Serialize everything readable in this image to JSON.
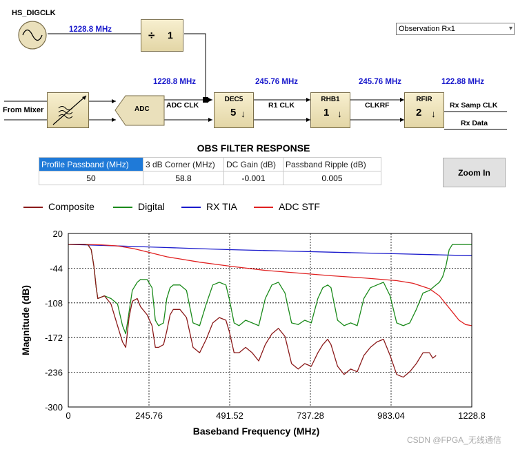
{
  "diagram": {
    "clock_source": "HS_DIGCLK",
    "clock_freq": "1228.8 MHz",
    "divider": {
      "symbol": "÷",
      "value": "1"
    },
    "input_label": "From Mixer",
    "adc_label": "ADC",
    "adc_clk_label": "ADC CLK",
    "adc_clk_freq": "1228.8 MHz",
    "stages": [
      {
        "name": "DEC5",
        "value": "5",
        "freq": "245.76 MHz",
        "clk_label": "R1 CLK"
      },
      {
        "name": "RHB1",
        "value": "1",
        "freq": "245.76 MHz",
        "clk_label": "CLKRF"
      },
      {
        "name": "RFIR",
        "value": "2",
        "freq": "122.88 MHz",
        "clk_label": "Rx Samp CLK"
      }
    ],
    "output_label": "Rx Data"
  },
  "channel_select": {
    "value": "Observation Rx1"
  },
  "response": {
    "title": "OBS FILTER RESPONSE",
    "headers": [
      "Profile Passband (MHz)",
      "3 dB Corner (MHz)",
      "DC Gain (dB)",
      "Passband Ripple (dB)"
    ],
    "values": [
      "50",
      "58.8",
      "-0.001",
      "0.005"
    ]
  },
  "zoom_button": "Zoom In",
  "legend": [
    {
      "name": "Composite",
      "color": "#8b1a1a"
    },
    {
      "name": "Digital",
      "color": "#1a8a1a"
    },
    {
      "name": "RX TIA",
      "color": "#1a1acc"
    },
    {
      "name": "ADC STF",
      "color": "#e02020"
    }
  ],
  "chart_data": {
    "type": "line",
    "xlabel": "Baseband Frequency (MHz)",
    "ylabel": "Magnitude (dB)",
    "xlim": [
      0,
      1228.8
    ],
    "ylim": [
      -300,
      20
    ],
    "xticks": [
      "0",
      "245.76",
      "491.52",
      "737.28",
      "983.04",
      "1228.8"
    ],
    "yticks": [
      "20",
      "-44",
      "-108",
      "-172",
      "-236",
      "-300"
    ],
    "grid": true,
    "series": [
      {
        "name": "RX TIA",
        "x": [
          0,
          100,
          200,
          300,
          400,
          500,
          600,
          700,
          800,
          900,
          1000,
          1100,
          1228.8
        ],
        "y": [
          0,
          -2,
          -4,
          -6,
          -8,
          -10,
          -11.5,
          -13,
          -14.5,
          -16,
          -17.5,
          -19,
          -21
        ]
      },
      {
        "name": "ADC STF",
        "x": [
          0,
          60,
          100,
          150,
          200,
          240,
          300,
          400,
          500,
          600,
          700,
          800,
          900,
          1000,
          1050,
          1100,
          1130,
          1150,
          1170,
          1190,
          1210,
          1228.8
        ],
        "y": [
          0,
          -0.3,
          -1,
          -3,
          -8,
          -14,
          -23,
          -33,
          -41,
          -48,
          -53,
          -58,
          -62,
          -67,
          -72,
          -82,
          -95,
          -110,
          -125,
          -140,
          -148,
          -150
        ]
      },
      {
        "name": "Digital",
        "x": [
          0,
          50,
          60,
          70,
          78,
          85,
          90,
          110,
          130,
          150,
          165,
          175,
          185,
          195,
          210,
          220,
          240,
          255,
          265,
          275,
          290,
          300,
          310,
          320,
          340,
          360,
          380,
          400,
          420,
          440,
          460,
          480,
          490,
          505,
          520,
          540,
          560,
          580,
          600,
          620,
          640,
          660,
          680,
          700,
          720,
          740,
          760,
          775,
          790,
          800,
          820,
          840,
          860,
          880,
          900,
          920,
          940,
          960,
          980,
          1000,
          1020,
          1040,
          1060,
          1080,
          1100,
          1110,
          1120,
          1130,
          1140,
          1150,
          1160,
          1170,
          1228.8
        ],
        "y": [
          0,
          0,
          -1,
          -10,
          -40,
          -80,
          -100,
          -95,
          -100,
          -110,
          -150,
          -165,
          -125,
          -85,
          -70,
          -65,
          -65,
          -80,
          -140,
          -150,
          -145,
          -100,
          -80,
          -75,
          -75,
          -85,
          -145,
          -150,
          -110,
          -75,
          -70,
          -75,
          -100,
          -145,
          -150,
          -140,
          -145,
          -150,
          -100,
          -75,
          -70,
          -90,
          -145,
          -148,
          -140,
          -145,
          -100,
          -80,
          -75,
          -80,
          -140,
          -150,
          -145,
          -150,
          -100,
          -80,
          -75,
          -70,
          -95,
          -145,
          -150,
          -145,
          -120,
          -90,
          -85,
          -80,
          -75,
          -70,
          -60,
          -40,
          -10,
          0,
          0
        ]
      },
      {
        "name": "Composite",
        "x": [
          0,
          50,
          60,
          70,
          78,
          85,
          90,
          110,
          130,
          150,
          165,
          175,
          185,
          195,
          210,
          220,
          240,
          255,
          265,
          275,
          290,
          300,
          310,
          320,
          340,
          360,
          380,
          400,
          420,
          440,
          460,
          480,
          490,
          505,
          520,
          540,
          560,
          580,
          600,
          620,
          640,
          660,
          680,
          700,
          720,
          740,
          760,
          775,
          790,
          800,
          820,
          840,
          860,
          880,
          900,
          920,
          940,
          960,
          980,
          1000,
          1020,
          1040,
          1060,
          1080,
          1100,
          1110,
          1120
        ],
        "y": [
          0,
          0,
          -1,
          -10,
          -40,
          -80,
          -100,
          -95,
          -110,
          -150,
          -180,
          -190,
          -135,
          -105,
          -100,
          -115,
          -130,
          -150,
          -190,
          -190,
          -185,
          -160,
          -130,
          -120,
          -120,
          -135,
          -190,
          -200,
          -175,
          -145,
          -135,
          -140,
          -160,
          -200,
          -200,
          -190,
          -200,
          -215,
          -185,
          -165,
          -155,
          -170,
          -220,
          -230,
          -220,
          -225,
          -200,
          -185,
          -175,
          -185,
          -225,
          -240,
          -230,
          -235,
          -205,
          -190,
          -180,
          -175,
          -205,
          -240,
          -245,
          -235,
          -220,
          -200,
          -200,
          -210,
          -205
        ]
      }
    ]
  },
  "watermark": "CSDN @FPGA_无线通信"
}
